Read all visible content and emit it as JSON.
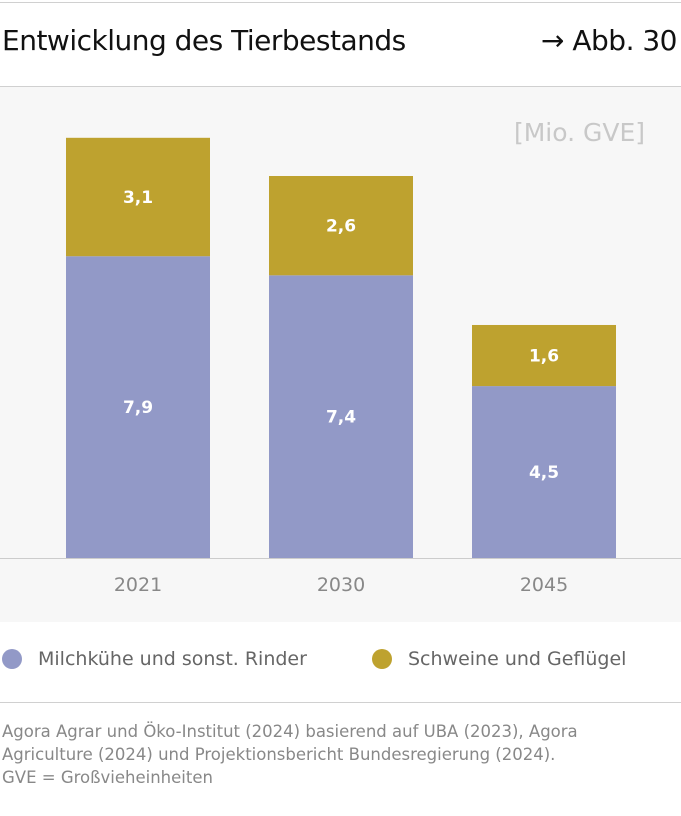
{
  "header": {
    "title": "Entwicklung des Tierbestands",
    "figure_ref": "→ Abb. 30"
  },
  "colors": {
    "series_1": "#9299c7",
    "series_2": "#bea22f",
    "panel_bg": "#f7f7f7",
    "axis": "#cccccc"
  },
  "chart_data": {
    "type": "bar",
    "stacked": true,
    "title": "Entwicklung des Tierbestands",
    "unit_label": "[Mio. GVE]",
    "xlabel": "",
    "ylabel": "Mio. GVE",
    "categories": [
      "2021",
      "2030",
      "2045"
    ],
    "series": [
      {
        "name": "Milchkühe und sonst. Rinder",
        "values": [
          7.9,
          7.4,
          4.5
        ],
        "labels": [
          "7,9",
          "7,4",
          "4,5"
        ],
        "color": "#9299c7"
      },
      {
        "name": "Schweine und Geflügel",
        "values": [
          3.1,
          2.6,
          1.6
        ],
        "labels": [
          "3,1",
          "2,6",
          "1,6"
        ],
        "color": "#bea22f"
      }
    ],
    "ylim": [
      0,
      12
    ],
    "grid": false,
    "legend_position": "bottom"
  },
  "legend": {
    "items": [
      {
        "label": "Milchkühe und sonst. Rinder",
        "color": "#9299c7"
      },
      {
        "label": "Schweine und Geflügel",
        "color": "#bea22f"
      }
    ]
  },
  "source": {
    "line1": "Agora Agrar und Öko-Institut (2024) basierend auf UBA (2023), Agora",
    "line2": "Agriculture (2024) und Projektionsbericht Bundesregierung (2024).",
    "line3": "GVE = Großvieheinheiten"
  }
}
